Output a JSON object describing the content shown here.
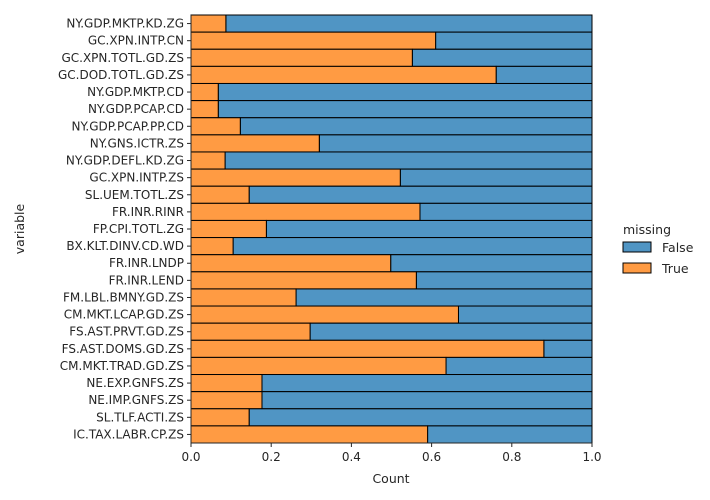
{
  "chart_data": {
    "type": "bar",
    "orientation": "horizontal",
    "stacked": "fill",
    "xlabel": "Count",
    "ylabel": "variable",
    "xlim": [
      0,
      1
    ],
    "xticks": [
      "0.0",
      "0.2",
      "0.4",
      "0.6",
      "0.8",
      "1.0"
    ],
    "grid": false,
    "legend": {
      "title": "missing",
      "position": "right",
      "entries": [
        {
          "label": "False",
          "color": "#1f77b4"
        },
        {
          "label": "True",
          "color": "#ff7f0e"
        }
      ]
    },
    "categories": [
      "NY.GDP.MKTP.KD.ZG",
      "GC.XPN.INTP.CN",
      "GC.XPN.TOTL.GD.ZS",
      "GC.DOD.TOTL.GD.ZS",
      "NY.GDP.MKTP.CD",
      "NY.GDP.PCAP.CD",
      "NY.GDP.PCAP.PP.CD",
      "NY.GNS.ICTR.ZS",
      "NY.GDP.DEFL.KD.ZG",
      "GC.XPN.INTP.ZS",
      "SL.UEM.TOTL.ZS",
      "FR.INR.RINR",
      "FP.CPI.TOTL.ZG",
      "BX.KLT.DINV.CD.WD",
      "FR.INR.LNDP",
      "FR.INR.LEND",
      "FM.LBL.BMNY.GD.ZS",
      "CM.MKT.LCAP.GD.ZS",
      "FS.AST.PRVT.GD.ZS",
      "FS.AST.DOMS.GD.ZS",
      "CM.MKT.TRAD.GD.ZS",
      "NE.EXP.GNFS.ZS",
      "NE.IMP.GNFS.ZS",
      "SL.TLF.ACTI.ZS",
      "IC.TAX.LABR.CP.ZS"
    ],
    "series": [
      {
        "name": "True",
        "color": "#ff7f0e",
        "values": [
          0.087,
          0.61,
          0.552,
          0.761,
          0.068,
          0.068,
          0.123,
          0.32,
          0.085,
          0.522,
          0.145,
          0.571,
          0.188,
          0.105,
          0.498,
          0.562,
          0.262,
          0.667,
          0.297,
          0.88,
          0.636,
          0.177,
          0.177,
          0.145,
          0.59
        ]
      },
      {
        "name": "False",
        "color": "#1f77b4",
        "values": [
          0.913,
          0.39,
          0.448,
          0.239,
          0.932,
          0.932,
          0.877,
          0.68,
          0.915,
          0.478,
          0.855,
          0.429,
          0.812,
          0.895,
          0.502,
          0.438,
          0.738,
          0.333,
          0.703,
          0.12,
          0.364,
          0.823,
          0.823,
          0.855,
          0.41
        ]
      }
    ]
  }
}
